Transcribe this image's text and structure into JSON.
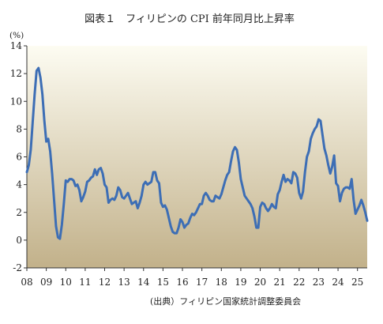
{
  "chart_data": {
    "type": "line",
    "title": "図表１　フィリピンの CPI 前年同月比上昇率",
    "ylabel": "(%)",
    "xlabel": "",
    "source": "(出典）フィリピン国家統計調整委員会",
    "ylim": [
      -2,
      14
    ],
    "yticks": [
      -2,
      0,
      2,
      4,
      6,
      8,
      10,
      12,
      14
    ],
    "y_tick_labels": [
      "-2",
      "0",
      "2",
      "4",
      "6",
      "8",
      "10",
      "12",
      "14"
    ],
    "xlim": [
      2008.0,
      2025.5
    ],
    "x_tick_labels": [
      "08",
      "09",
      "10",
      "11",
      "12",
      "13",
      "14",
      "15",
      "16",
      "17",
      "18",
      "19",
      "20",
      "21",
      "22",
      "23",
      "24",
      "25"
    ],
    "x_tick_positions": [
      2008,
      2009,
      2010,
      2011,
      2012,
      2013,
      2014,
      2015,
      2016,
      2017,
      2018,
      2019,
      2020,
      2021,
      2022,
      2023,
      2024,
      2025
    ],
    "grid": false,
    "legend": "none",
    "colors": {
      "line": "#3d6eb5",
      "background_top": "#fdfcf2",
      "background_bottom": "#c2b18a",
      "axis": "#333333"
    },
    "series": [
      {
        "x": [
          2008.0,
          2008.1,
          2008.2,
          2008.3,
          2008.4,
          2008.5,
          2008.6,
          2008.7,
          2008.8,
          2008.9,
          2009.0,
          2009.1,
          2009.2,
          2009.3,
          2009.4,
          2009.5,
          2009.6,
          2009.7,
          2009.8,
          2009.9,
          2010.0,
          2010.1,
          2010.2,
          2010.3,
          2010.4,
          2010.5,
          2010.6,
          2010.7,
          2010.8,
          2010.9,
          2011.0,
          2011.1,
          2011.2,
          2011.3,
          2011.4,
          2011.5,
          2011.6,
          2011.7,
          2011.8,
          2011.9,
          2012.0,
          2012.1,
          2012.2,
          2012.3,
          2012.4,
          2012.5,
          2012.6,
          2012.7,
          2012.8,
          2012.9,
          2013.0,
          2013.1,
          2013.2,
          2013.3,
          2013.4,
          2013.5,
          2013.6,
          2013.7,
          2013.8,
          2013.9,
          2014.0,
          2014.1,
          2014.2,
          2014.3,
          2014.4,
          2014.5,
          2014.6,
          2014.7,
          2014.8,
          2014.9,
          2015.0,
          2015.1,
          2015.2,
          2015.3,
          2015.4,
          2015.5,
          2015.6,
          2015.7,
          2015.8,
          2015.9,
          2016.0,
          2016.1,
          2016.2,
          2016.3,
          2016.4,
          2016.5,
          2016.6,
          2016.7,
          2016.8,
          2016.9,
          2017.0,
          2017.1,
          2017.2,
          2017.3,
          2017.4,
          2017.5,
          2017.6,
          2017.7,
          2017.8,
          2017.9,
          2018.0,
          2018.1,
          2018.2,
          2018.3,
          2018.4,
          2018.5,
          2018.6,
          2018.7,
          2018.8,
          2018.9,
          2019.0,
          2019.1,
          2019.2,
          2019.3,
          2019.4,
          2019.5,
          2019.6,
          2019.7,
          2019.8,
          2019.9,
          2020.0,
          2020.1,
          2020.2,
          2020.3,
          2020.4,
          2020.5,
          2020.6,
          2020.7,
          2020.8,
          2020.9,
          2021.0,
          2021.1,
          2021.2,
          2021.3,
          2021.4,
          2021.5,
          2021.6,
          2021.7,
          2021.8,
          2021.9,
          2022.0,
          2022.1,
          2022.2,
          2022.3,
          2022.4,
          2022.5,
          2022.6,
          2022.7,
          2022.8,
          2022.9,
          2023.0,
          2023.1,
          2023.2,
          2023.3,
          2023.4,
          2023.5,
          2023.6,
          2023.7,
          2023.8,
          2023.9,
          2024.0,
          2024.1,
          2024.2,
          2024.3,
          2024.4,
          2024.5,
          2024.6,
          2024.7,
          2024.8,
          2024.9,
          2025.0,
          2025.1,
          2025.2,
          2025.3,
          2025.4,
          2025.5
        ],
        "values": [
          4.9,
          5.4,
          6.5,
          8.5,
          10.5,
          12.2,
          12.4,
          11.7,
          10.5,
          8.6,
          7.1,
          7.3,
          6.4,
          4.8,
          2.9,
          1.0,
          0.2,
          0.1,
          1.1,
          2.6,
          4.3,
          4.2,
          4.4,
          4.4,
          4.3,
          3.9,
          4.0,
          3.6,
          2.8,
          3.1,
          3.5,
          4.2,
          4.3,
          4.5,
          4.6,
          5.1,
          4.7,
          5.1,
          5.2,
          4.8,
          4.0,
          3.8,
          2.7,
          2.9,
          3.0,
          2.9,
          3.2,
          3.8,
          3.6,
          3.1,
          3.0,
          3.2,
          3.4,
          3.0,
          2.6,
          2.7,
          2.8,
          2.3,
          2.7,
          3.2,
          4.0,
          4.2,
          4.0,
          4.1,
          4.2,
          4.9,
          4.9,
          4.3,
          4.1,
          2.7,
          2.4,
          2.5,
          2.2,
          1.6,
          1.0,
          0.6,
          0.5,
          0.5,
          0.9,
          1.5,
          1.3,
          0.9,
          1.1,
          1.2,
          1.6,
          1.9,
          1.8,
          2.0,
          2.3,
          2.6,
          2.6,
          3.2,
          3.4,
          3.2,
          2.9,
          2.8,
          2.8,
          3.2,
          3.1,
          3.0,
          3.3,
          3.8,
          4.3,
          4.7,
          4.9,
          5.7,
          6.4,
          6.7,
          6.5,
          5.6,
          4.4,
          3.8,
          3.2,
          3.0,
          2.8,
          2.6,
          2.3,
          1.7,
          0.9,
          0.9,
          2.4,
          2.7,
          2.6,
          2.3,
          2.1,
          2.3,
          2.6,
          2.4,
          2.3,
          3.3,
          3.6,
          4.2,
          4.7,
          4.2,
          4.4,
          4.3,
          4.1,
          4.9,
          4.8,
          4.5,
          3.4,
          3.0,
          3.5,
          4.9,
          6.0,
          6.4,
          7.3,
          7.7,
          8.0,
          8.2,
          8.7,
          8.6,
          7.6,
          6.6,
          6.1,
          5.4,
          4.8,
          5.3,
          6.1,
          4.1,
          3.9,
          2.8,
          3.4,
          3.7,
          3.8,
          3.8,
          3.7,
          4.4,
          2.9,
          1.9,
          2.2,
          2.5,
          2.9,
          2.5,
          2.0,
          1.4
        ]
      }
    ]
  }
}
